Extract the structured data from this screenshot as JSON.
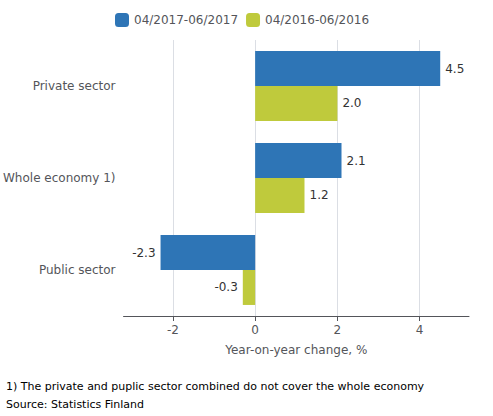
{
  "chart_data": {
    "type": "bar",
    "orientation": "horizontal",
    "categories": [
      "Private sector",
      "Whole economy 1)",
      "Public sector"
    ],
    "series": [
      {
        "name": "04/2017-06/2017",
        "color": "#2E75B6",
        "values": [
          4.5,
          2.1,
          -2.3
        ],
        "value_labels": [
          "4.5",
          "2.1",
          "-2.3"
        ]
      },
      {
        "name": "04/2016-06/2016",
        "color": "#BFCA3C",
        "values": [
          2.0,
          1.2,
          -0.3
        ],
        "value_labels": [
          "2.0",
          "1.2",
          "-0.3"
        ]
      }
    ],
    "xlabel": "Year-on-year change, %",
    "xlim": [
      -3.2,
      5.2
    ],
    "xticks": [
      -2,
      0,
      2,
      4
    ],
    "annotations": [
      "1) The private and puplic sector combined do not cover the whole economy",
      "Source: Statistics Finland"
    ],
    "grid": true,
    "data_labels": true,
    "legend": "upper left"
  }
}
